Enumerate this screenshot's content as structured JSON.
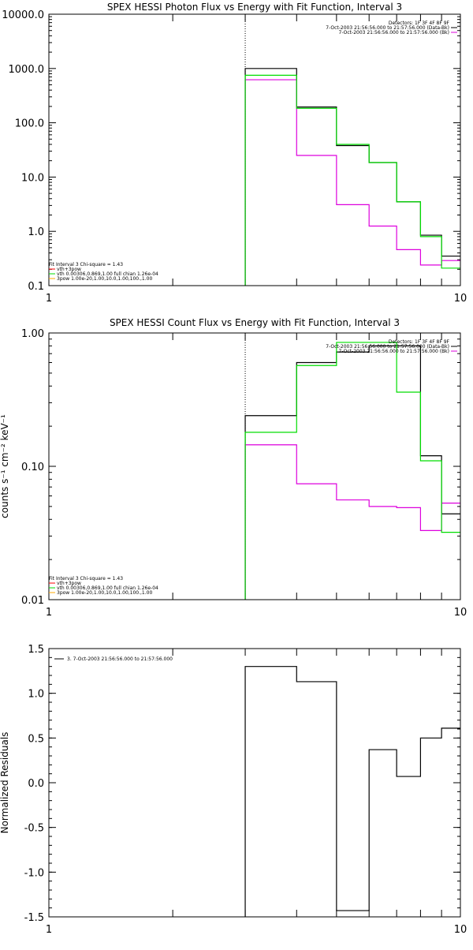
{
  "colors": {
    "black": "#000000",
    "green": "#00dd00",
    "magenta": "#dd00dd",
    "red": "#ff0000",
    "orange": "#ffaa00"
  },
  "chart_data": [
    {
      "type": "line",
      "title": "SPEX HESSI Photon Flux vs Energy with Fit Function, Interval 3",
      "xscale": "log",
      "yscale": "log",
      "xlim": [
        1,
        10
      ],
      "ylim": [
        0.1,
        10000
      ],
      "xticks": [
        1,
        10
      ],
      "xtick_labels": [
        "1",
        "10"
      ],
      "yticks": [
        0.1,
        1,
        10,
        100,
        1000,
        10000
      ],
      "ytick_labels": [
        "0.1",
        "1.0",
        "10.0",
        "100.0",
        "1000.0",
        "10000.0"
      ],
      "ylabel": "",
      "marker_line_x": 3,
      "bin_edges": [
        3,
        4,
        5,
        6,
        7,
        8,
        9,
        10
      ],
      "series": [
        {
          "key": "data",
          "color": "black",
          "values": [
            1000,
            195,
            38,
            18.5,
            3.5,
            0.85,
            0.35
          ]
        },
        {
          "key": "background",
          "color": "magenta",
          "values": [
            620,
            25,
            3.1,
            1.25,
            0.46,
            0.24,
            0.29
          ]
        },
        {
          "key": "fit",
          "color": "green",
          "values": [
            750,
            185,
            40,
            18.5,
            3.5,
            0.8,
            0.21
          ]
        }
      ],
      "header_lines": [
        "Detectors: 1F 3F 4F 8F 9F",
        "7-Oct-2003 21:56:56.000 to 21:57:56.000 (Data-Bk)",
        "7-Oct-2003 21:56:56.000 to 21:57:56.000 (Bk)"
      ],
      "legend_lines": [
        "Fit Interval 3   Chi-square = 1.43",
        "vth+3pow",
        "vth 0.00306,0.869,1.00   full chian 1.26e-04",
        "3pow 1.00e-20,1.00,10.0,1.00,100.,1.00"
      ]
    },
    {
      "type": "line",
      "title": "SPEX HESSI Count Flux vs Energy with Fit Function, Interval 3",
      "xscale": "log",
      "yscale": "log",
      "xlim": [
        1,
        10
      ],
      "ylim": [
        0.01,
        1.0
      ],
      "xticks": [
        1,
        10
      ],
      "xtick_labels": [
        "1",
        "10"
      ],
      "yticks": [
        0.01,
        0.1,
        1.0
      ],
      "ytick_labels": [
        "0.01",
        "0.10",
        "1.00"
      ],
      "ylabel": "counts s⁻¹ cm⁻² keV⁻¹",
      "marker_line_x": 3,
      "bin_edges": [
        3,
        4,
        5,
        6,
        7,
        8,
        9,
        10
      ],
      "series": [
        {
          "key": "data",
          "color": "black",
          "values": [
            0.24,
            0.6,
            0.72,
            0.8,
            0.8,
            0.12,
            0.044
          ]
        },
        {
          "key": "background",
          "color": "magenta",
          "values": [
            0.145,
            0.074,
            0.056,
            0.05,
            0.049,
            0.033,
            0.053
          ]
        },
        {
          "key": "fit",
          "color": "green",
          "values": [
            0.18,
            0.57,
            0.85,
            0.85,
            0.36,
            0.11,
            0.032
          ]
        }
      ],
      "header_lines": [
        "Detectors: 1F 3F 4F 8F 9F",
        "7-Oct-2003 21:56:56.000 to 21:57:56.000 (Data-Bk)",
        "7-Oct-2003 21:56:56.000 to 21:57:56.000 (Bk)"
      ],
      "legend_lines": [
        "Fit Interval 3   Chi-square = 1.43",
        "vth+3pow",
        "vth 0.00306,0.869,1.00   full chian 1.26e-04",
        "3pow 1.00e-20,1.00,10.0,1.00,100.,1.00"
      ]
    },
    {
      "type": "line",
      "title": "",
      "xscale": "log",
      "yscale": "linear",
      "xlim": [
        1,
        10
      ],
      "ylim": [
        -1.5,
        1.5
      ],
      "xticks": [
        1,
        10
      ],
      "xtick_labels": [
        "1",
        "10"
      ],
      "yticks": [
        -1.5,
        -1.0,
        -0.5,
        0.0,
        0.5,
        1.0,
        1.5
      ],
      "ytick_labels": [
        "-1.5",
        "-1.0",
        "-0.5",
        "0.0",
        "0.5",
        "1.0",
        "1.5"
      ],
      "ylabel": "Normalized Residuals",
      "bin_edges": [
        3,
        4,
        5,
        6,
        7,
        8,
        9,
        10
      ],
      "series": [
        {
          "key": "residuals",
          "color": "black",
          "values": [
            1.3,
            1.13,
            -1.43,
            0.37,
            0.07,
            0.5,
            0.61
          ]
        }
      ],
      "legend_lines": [
        "3. 7-Oct-2003 21:56:56.000 to 21:57:56.000"
      ]
    }
  ]
}
